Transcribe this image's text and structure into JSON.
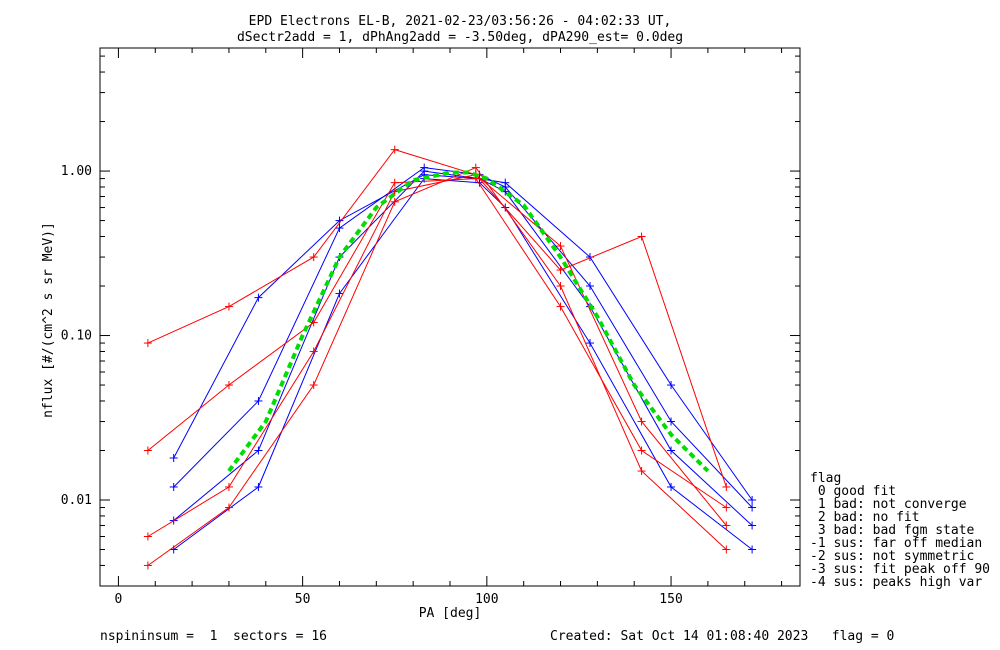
{
  "header": {
    "title_line1": "EPD Electrons EL-B, 2021-02-23/03:56:26 - 04:02:33 UT,",
    "title_line2": "dSectr2add = 1, dPhAng2add = -3.50deg, dPA290_est=   0.0deg"
  },
  "footer": {
    "left": "nspininsum =  1  sectors = 16",
    "right": "Created: Sat Oct 14 01:08:40 2023   flag = 0"
  },
  "legend": {
    "title": "flag",
    "items": [
      " 0 good fit",
      " 1 bad: not converge",
      " 2 bad: no fit",
      " 3 bad: bad fgm state",
      "-1 sus: far off median",
      "-2 sus: not symmetric",
      "-3 sus: fit peak off 90",
      "-4 sus: peaks high var"
    ]
  },
  "colors": {
    "good_fit": "#0000ff",
    "flagged": "#ff0000",
    "median_fit": "#00dd00",
    "axes": "#000000"
  },
  "chart_data": {
    "type": "line",
    "xlabel": "PA [deg]",
    "ylabel": "nflux [#/(cm^2 s sr MeV)]",
    "xlim": [
      -5,
      185
    ],
    "ylim": [
      0.003,
      5.6
    ],
    "yscale": "log",
    "x_ticks": [
      0,
      50,
      100,
      150
    ],
    "x_tick_labels": [
      "0",
      "50",
      "100",
      "150"
    ],
    "y_ticks": [
      0.01,
      0.1,
      1.0
    ],
    "y_tick_labels": [
      "0.01",
      "0.10",
      "1.00"
    ],
    "grid": false,
    "legend_position": "right",
    "series": [
      {
        "name": "",
        "color": "#0000ff",
        "x": [
          15,
          38,
          60,
          83,
          98,
          105,
          128,
          150,
          172
        ],
        "y": [
          0.0075,
          0.02,
          0.3,
          1.0,
          0.9,
          0.75,
          0.15,
          0.02,
          0.007
        ]
      },
      {
        "name": "",
        "color": "#0000ff",
        "x": [
          15,
          38,
          60,
          83,
          98,
          105,
          128,
          150,
          172
        ],
        "y": [
          0.012,
          0.04,
          0.45,
          1.05,
          0.95,
          0.8,
          0.2,
          0.03,
          0.009
        ]
      },
      {
        "name": "",
        "color": "#0000ff",
        "x": [
          15,
          38,
          60,
          83,
          98,
          105,
          128,
          150,
          172
        ],
        "y": [
          0.005,
          0.012,
          0.18,
          0.9,
          0.85,
          0.6,
          0.09,
          0.012,
          0.005
        ]
      },
      {
        "name": "",
        "color": "#0000ff",
        "x": [
          15,
          38,
          60,
          83,
          98,
          105,
          128,
          150,
          172
        ],
        "y": [
          0.018,
          0.17,
          0.5,
          0.95,
          0.9,
          0.85,
          0.3,
          0.05,
          0.01
        ]
      },
      {
        "name": "",
        "color": "#ff0000",
        "x": [
          8,
          30,
          53,
          75,
          97,
          120,
          142,
          165
        ],
        "y": [
          0.09,
          0.15,
          0.3,
          1.35,
          0.95,
          0.25,
          0.4,
          0.012
        ]
      },
      {
        "name": "",
        "color": "#ff0000",
        "x": [
          8,
          30,
          53,
          75,
          97,
          120,
          142,
          165
        ],
        "y": [
          0.006,
          0.012,
          0.08,
          0.75,
          0.95,
          0.35,
          0.03,
          0.007
        ]
      },
      {
        "name": "",
        "color": "#ff0000",
        "x": [
          8,
          30,
          53,
          75,
          97,
          120,
          142,
          165
        ],
        "y": [
          0.004,
          0.009,
          0.05,
          0.65,
          1.05,
          0.2,
          0.015,
          0.005
        ]
      },
      {
        "name": "",
        "color": "#ff0000",
        "x": [
          8,
          30,
          53,
          75,
          97,
          120,
          142,
          165
        ],
        "y": [
          0.02,
          0.05,
          0.12,
          0.85,
          0.9,
          0.15,
          0.02,
          0.009
        ]
      },
      {
        "name": "",
        "color": "#00dd00",
        "x": [
          30,
          40,
          50,
          60,
          70,
          80,
          90,
          95,
          100,
          110,
          120,
          130,
          140,
          150,
          160
        ],
        "y": [
          0.015,
          0.03,
          0.1,
          0.3,
          0.6,
          0.88,
          0.98,
          0.98,
          0.9,
          0.62,
          0.3,
          0.13,
          0.05,
          0.025,
          0.015
        ]
      }
    ]
  }
}
